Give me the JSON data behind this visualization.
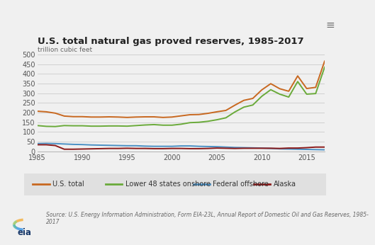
{
  "title": "U.S. total natural gas proved reserves, 1985-2017",
  "ylabel": "trillion cubic feet",
  "background_color": "#f0f0f0",
  "plot_bg_color": "#f0f0f0",
  "legend_bg": "#e8e8e8",
  "years": [
    1985,
    1986,
    1987,
    1988,
    1989,
    1990,
    1991,
    1992,
    1993,
    1994,
    1995,
    1996,
    1997,
    1998,
    1999,
    2000,
    2001,
    2002,
    2003,
    2004,
    2005,
    2006,
    2007,
    2008,
    2009,
    2010,
    2011,
    2012,
    2013,
    2014,
    2015,
    2016,
    2017
  ],
  "us_total": [
    207,
    204,
    197,
    182,
    179,
    179,
    177,
    177,
    178,
    177,
    175,
    177,
    178,
    178,
    175,
    177,
    183,
    189,
    190,
    196,
    204,
    211,
    238,
    263,
    273,
    317,
    349,
    323,
    310,
    389,
    324,
    330,
    465
  ],
  "lower48": [
    133,
    129,
    128,
    133,
    132,
    132,
    130,
    130,
    131,
    131,
    130,
    133,
    136,
    138,
    135,
    135,
    140,
    148,
    150,
    155,
    163,
    173,
    203,
    228,
    239,
    284,
    318,
    295,
    280,
    360,
    295,
    298,
    434
  ],
  "fed_offshore": [
    40,
    41,
    40,
    38,
    36,
    35,
    33,
    32,
    31,
    30,
    29,
    29,
    27,
    26,
    26,
    26,
    28,
    28,
    26,
    25,
    24,
    22,
    20,
    19,
    18,
    17,
    15,
    13,
    12,
    11,
    10,
    9,
    8
  ],
  "alaska": [
    34,
    34,
    30,
    11,
    11,
    12,
    13,
    14,
    15,
    15,
    16,
    15,
    15,
    14,
    14,
    15,
    15,
    14,
    14,
    15,
    17,
    16,
    15,
    16,
    16,
    16,
    16,
    15,
    17,
    17,
    19,
    22,
    22
  ],
  "colors": {
    "us_total": "#c86820",
    "lower48": "#6aaa3a",
    "fed_offshore": "#4a90c4",
    "alaska": "#8b1a1a"
  },
  "legend_labels": [
    "U.S. total",
    "Lower 48 states onshore",
    "Federal offshore",
    "Alaska"
  ],
  "ylim": [
    0,
    500
  ],
  "yticks": [
    0,
    50,
    100,
    150,
    200,
    250,
    300,
    350,
    400,
    450,
    500
  ],
  "xticks": [
    1985,
    1990,
    1995,
    2000,
    2005,
    2010,
    2015
  ],
  "source_text": "Source: U.S. Energy Information Administration, Form EIA-23L, Annual Report of Domestic Oil and Gas Reserves, 1985-\n2017",
  "top_bar_color": "#aaaaaa",
  "footer_bg": "#ffffff"
}
